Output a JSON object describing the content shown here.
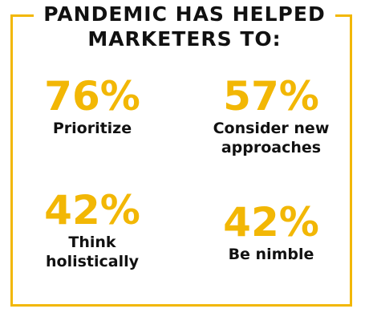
{
  "header": {
    "line1": "PANDEMIC HAS HELPED",
    "line2": "MARKETERS TO:"
  },
  "stats": [
    {
      "value": "76%",
      "label_lines": [
        "Prioritize"
      ]
    },
    {
      "value": "57%",
      "label_lines": [
        "Consider new",
        "approaches"
      ]
    },
    {
      "value": "42%",
      "label_lines": [
        "Think",
        "holistically"
      ]
    },
    {
      "value": "42%",
      "label_lines": [
        "Be nimble"
      ]
    }
  ],
  "colors": {
    "accent": "#f2b705",
    "text": "#111111",
    "background": "#ffffff"
  }
}
